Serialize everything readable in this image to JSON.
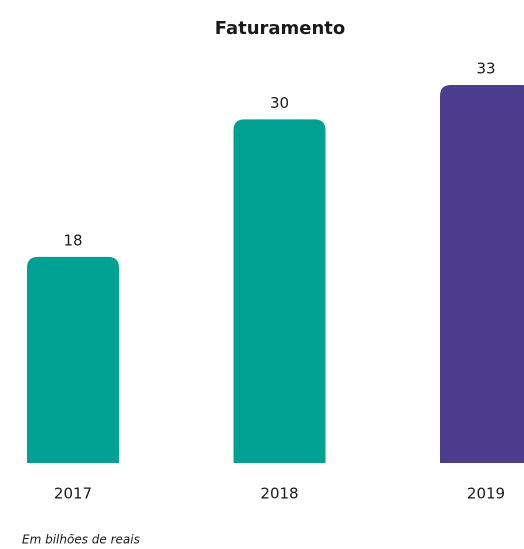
{
  "chart_data": {
    "type": "bar",
    "title": "Faturamento",
    "categories": [
      "2017",
      "2018",
      "2019"
    ],
    "values": [
      18,
      30,
      33
    ],
    "colors": [
      "#00a192",
      "#00a192",
      "#4b3c8d"
    ],
    "note": "Em bilhões de reais"
  }
}
